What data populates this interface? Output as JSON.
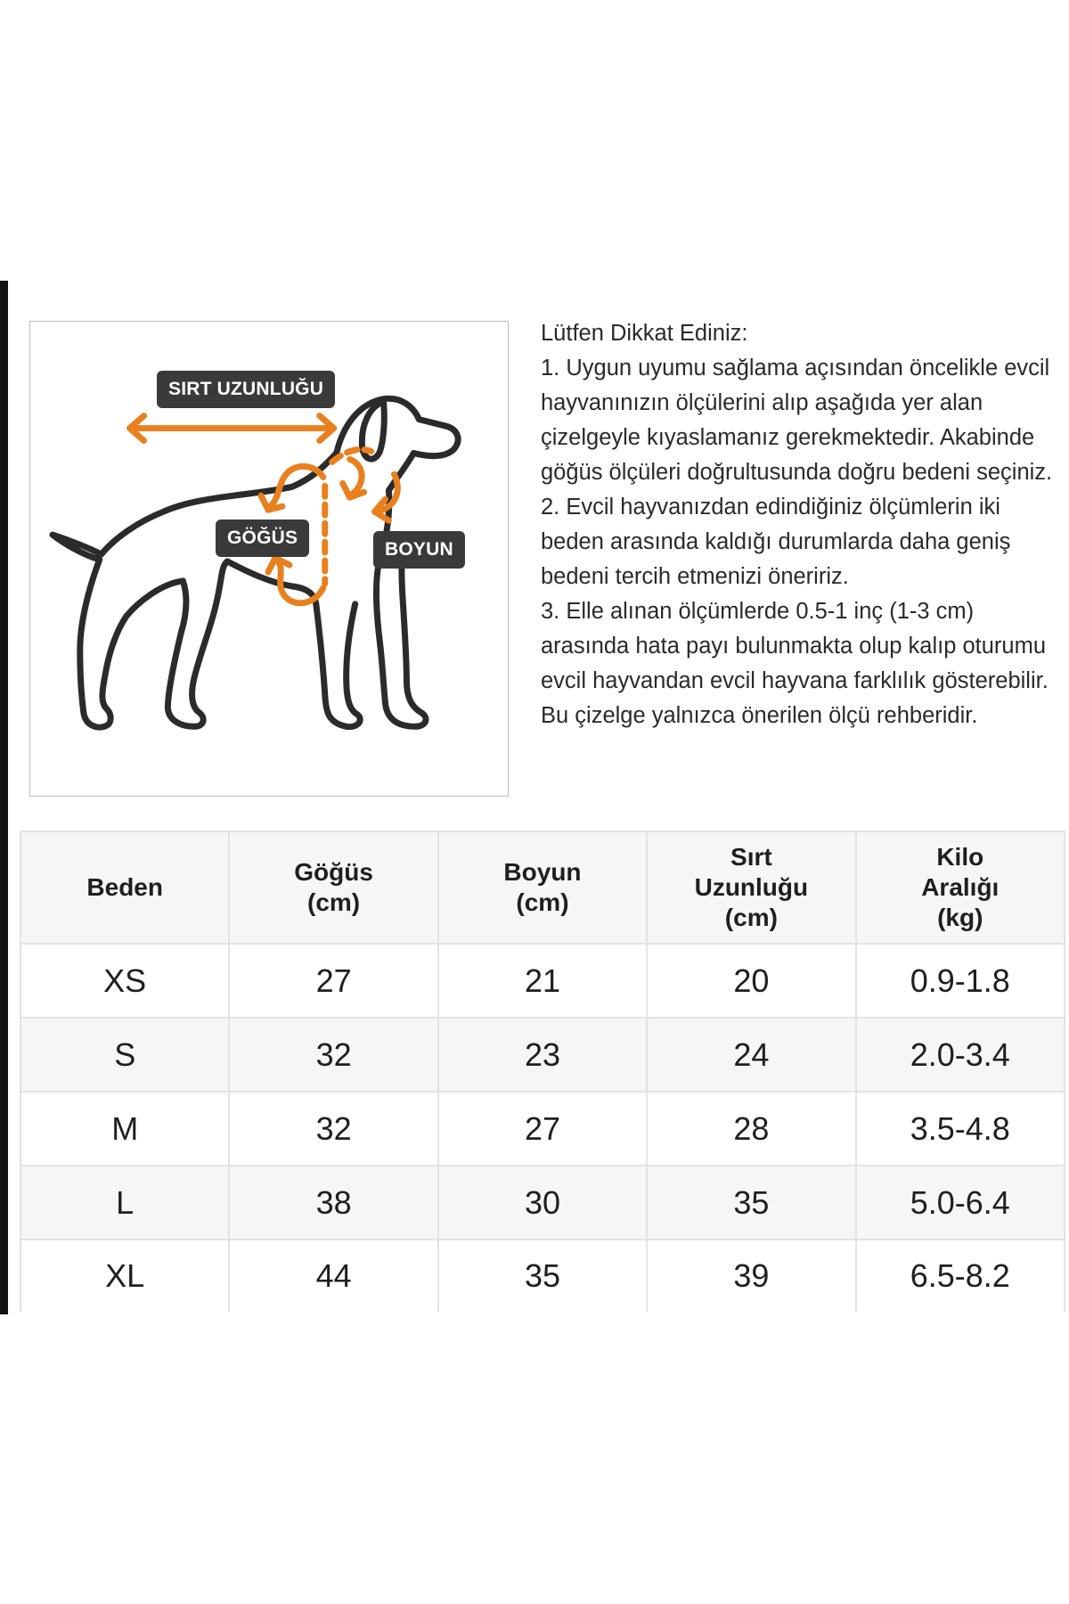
{
  "diagram": {
    "labels": {
      "back_length": "SIRT UZUNLUĞU",
      "chest": "GÖĞÜS",
      "neck": "BOYUN"
    },
    "accent_color": "#e8801e",
    "outline_color": "#2b2b2b"
  },
  "notes": {
    "heading": "Lütfen Dikkat Ediniz:",
    "items": [
      "1. Uygun uyumu sağlama açısından öncelikle evcil hayvanınızın ölçülerini alıp aşağıda yer alan çizelgeyle kıyaslamanız gerekmektedir. Akabinde göğüs ölçüleri doğrultusunda doğru bedeni seçiniz.",
      "2. Evcil hayvanızdan edindiğiniz ölçümlerin iki beden arasında kaldığı durumlarda daha geniş bedeni tercih etmenizi öneririz.",
      "3. Elle alınan ölçümlerde 0.5-1 inç (1-3 cm) arasında hata payı bulunmakta olup kalıp oturumu evcil hayvandan evcil hayvana farklılık gösterebilir.",
      "Bu çizelge yalnızca önerilen ölçü rehberidir."
    ]
  },
  "table": {
    "headers": [
      "Beden",
      "Göğüs\n(cm)",
      "Boyun\n(cm)",
      "Sırt\nUzunluğu\n(cm)",
      "Kilo\nAralığı\n(kg)"
    ],
    "rows": [
      [
        "XS",
        "27",
        "21",
        "20",
        "0.9-1.8"
      ],
      [
        "S",
        "32",
        "23",
        "24",
        "2.0-3.4"
      ],
      [
        "M",
        "32",
        "27",
        "28",
        "3.5-4.8"
      ],
      [
        "L",
        "38",
        "30",
        "35",
        "5.0-6.4"
      ],
      [
        "XL",
        "44",
        "35",
        "39",
        "6.5-8.2"
      ]
    ]
  }
}
